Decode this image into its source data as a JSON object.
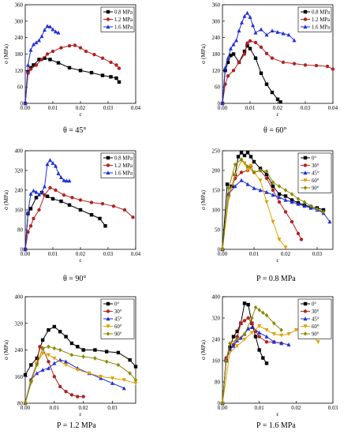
{
  "chart_data": [
    {
      "type": "line",
      "caption": "θ = 45°",
      "xlabel": "ε",
      "ylabel": "σ (MPa)",
      "xlim": [
        0,
        0.04
      ],
      "ylim": [
        0,
        360
      ],
      "xticks": [
        "0.00",
        "0.01",
        "0.02",
        "0.03",
        "0.04"
      ],
      "yticks": [
        "0",
        "60",
        "120",
        "180",
        "240",
        "300",
        "360"
      ],
      "legend_position": "top-right",
      "grid": false,
      "series": [
        {
          "name": "0.8 MPa",
          "color": "#000000",
          "marker": "square",
          "x": [
            0,
            0.001,
            0.002,
            0.003,
            0.005,
            0.007,
            0.009,
            0.012,
            0.016,
            0.02,
            0.024,
            0.028,
            0.031,
            0.033,
            0.034
          ],
          "y": [
            0,
            115,
            130,
            140,
            160,
            165,
            160,
            148,
            130,
            120,
            112,
            102,
            97,
            92,
            78
          ]
        },
        {
          "name": "1.2 MPa",
          "color": "#b22222",
          "marker": "circle",
          "x": [
            0,
            0.001,
            0.002,
            0.004,
            0.006,
            0.008,
            0.01,
            0.013,
            0.016,
            0.018,
            0.02,
            0.022,
            0.025,
            0.028,
            0.031,
            0.033,
            0.034
          ],
          "y": [
            0,
            110,
            125,
            140,
            160,
            180,
            190,
            203,
            210,
            212,
            203,
            190,
            178,
            165,
            150,
            140,
            128
          ]
        },
        {
          "name": "1.6 MPa",
          "color": "#1f2fd6",
          "marker": "triangle",
          "x": [
            0,
            0.001,
            0.002,
            0.003,
            0.004,
            0.005,
            0.006,
            0.007,
            0.008,
            0.009,
            0.01,
            0.011,
            0.012
          ],
          "y": [
            0,
            140,
            195,
            215,
            222,
            230,
            245,
            268,
            282,
            280,
            270,
            262,
            258
          ]
        }
      ]
    },
    {
      "type": "line",
      "caption": "θ = 60°",
      "xlabel": "ε",
      "ylabel": "σ (MPa)",
      "xlim": [
        0,
        0.04
      ],
      "ylim": [
        0,
        360
      ],
      "xticks": [
        "0.00",
        "0.01",
        "0.02",
        "0.03",
        "0.04"
      ],
      "yticks": [
        "0",
        "60",
        "120",
        "180",
        "240",
        "300",
        "360"
      ],
      "legend_position": "top-right",
      "grid": false,
      "series": [
        {
          "name": "0.8 MPa",
          "color": "#000000",
          "marker": "square",
          "x": [
            0,
            0.001,
            0.002,
            0.003,
            0.004,
            0.006,
            0.008,
            0.009,
            0.01,
            0.012,
            0.014,
            0.016,
            0.018,
            0.02,
            0.021
          ],
          "y": [
            0,
            120,
            150,
            175,
            180,
            150,
            190,
            210,
            200,
            165,
            110,
            70,
            40,
            15,
            5
          ]
        },
        {
          "name": "1.2 MPa",
          "color": "#b22222",
          "marker": "circle",
          "x": [
            0,
            0.001,
            0.002,
            0.004,
            0.006,
            0.008,
            0.009,
            0.01,
            0.012,
            0.014,
            0.016,
            0.018,
            0.022,
            0.026,
            0.03,
            0.034,
            0.038,
            0.04
          ],
          "y": [
            0,
            70,
            100,
            120,
            150,
            180,
            220,
            228,
            222,
            205,
            182,
            165,
            150,
            145,
            140,
            138,
            135,
            125
          ]
        },
        {
          "name": "1.6 MPa",
          "color": "#1f2fd6",
          "marker": "triangle",
          "x": [
            0,
            0.001,
            0.002,
            0.003,
            0.004,
            0.005,
            0.006,
            0.007,
            0.008,
            0.009,
            0.01,
            0.011,
            0.012,
            0.014,
            0.016,
            0.018,
            0.02,
            0.022,
            0.024,
            0.026
          ],
          "y": [
            0,
            130,
            165,
            200,
            215,
            230,
            265,
            295,
            318,
            330,
            315,
            285,
            258,
            270,
            250,
            265,
            260,
            255,
            250,
            230
          ]
        }
      ]
    },
    {
      "type": "line",
      "caption": "θ = 90°",
      "xlabel": "ε",
      "ylabel": "σ (MPa)",
      "xlim": [
        0,
        0.04
      ],
      "ylim": [
        0,
        400
      ],
      "xticks": [
        "0.00",
        "0.01",
        "0.02",
        "0.03",
        "0.04"
      ],
      "yticks": [
        "0",
        "80",
        "160",
        "240",
        "320",
        "400"
      ],
      "legend_position": "top-right",
      "grid": false,
      "series": [
        {
          "name": "0.8 MPa",
          "color": "#000000",
          "marker": "square",
          "x": [
            0,
            0.001,
            0.002,
            0.004,
            0.006,
            0.008,
            0.01,
            0.013,
            0.016,
            0.02,
            0.024,
            0.027,
            0.029
          ],
          "y": [
            0,
            145,
            165,
            210,
            230,
            215,
            205,
            195,
            180,
            160,
            140,
            125,
            95
          ]
        },
        {
          "name": "1.2 MPa",
          "color": "#b22222",
          "marker": "circle",
          "x": [
            0,
            0.001,
            0.002,
            0.003,
            0.005,
            0.007,
            0.009,
            0.011,
            0.014,
            0.017,
            0.02,
            0.024,
            0.028,
            0.032,
            0.036,
            0.039
          ],
          "y": [
            0,
            70,
            95,
            125,
            160,
            220,
            250,
            240,
            220,
            210,
            200,
            190,
            185,
            175,
            160,
            130
          ]
        },
        {
          "name": "1.6 MPa",
          "color": "#1f2fd6",
          "marker": "triangle",
          "x": [
            0,
            0.001,
            0.002,
            0.003,
            0.004,
            0.005,
            0.006,
            0.007,
            0.008,
            0.009,
            0.01,
            0.011,
            0.012,
            0.013,
            0.014,
            0.015,
            0.016
          ],
          "y": [
            0,
            150,
            225,
            238,
            232,
            222,
            232,
            255,
            345,
            362,
            350,
            338,
            308,
            292,
            280,
            278,
            278
          ]
        }
      ]
    },
    {
      "type": "line",
      "caption": "P = 0.8 MPa",
      "xlabel": "ε",
      "ylabel": "σ (MPa)",
      "xlim": [
        0,
        0.035
      ],
      "ylim": [
        0,
        250
      ],
      "xticks": [
        "0.00",
        "0.01",
        "0.02",
        "0.03"
      ],
      "yticks": [
        "0",
        "50",
        "100",
        "150",
        "200",
        "250"
      ],
      "legend_position": "top-right",
      "grid": false,
      "series": [
        {
          "name": "0°",
          "color": "#000000",
          "marker": "square",
          "x": [
            0,
            0.0015,
            0.003,
            0.004,
            0.005,
            0.006,
            0.007,
            0.008,
            0.009,
            0.01,
            0.012,
            0.014,
            0.016,
            0.018,
            0.02,
            0.022,
            0.024,
            0.026,
            0.028,
            0.03,
            0.032
          ],
          "y": [
            0,
            165,
            160,
            190,
            235,
            245,
            238,
            245,
            235,
            222,
            205,
            190,
            160,
            140,
            135,
            125,
            118,
            112,
            108,
            105,
            100
          ]
        },
        {
          "name": "30°",
          "color": "#b22222",
          "marker": "circle",
          "x": [
            0,
            0.002,
            0.004,
            0.006,
            0.008,
            0.009,
            0.01,
            0.012,
            0.014,
            0.016,
            0.018,
            0.02,
            0.022,
            0.024,
            0.025
          ],
          "y": [
            0,
            140,
            180,
            195,
            200,
            210,
            195,
            200,
            180,
            150,
            120,
            95,
            70,
            40,
            25
          ]
        },
        {
          "name": "45°",
          "color": "#1f2fd6",
          "marker": "triangle",
          "x": [
            0,
            0.002,
            0.004,
            0.006,
            0.008,
            0.01,
            0.012,
            0.014,
            0.016,
            0.018,
            0.02,
            0.022,
            0.024,
            0.026,
            0.028,
            0.03,
            0.032,
            0.034
          ],
          "y": [
            0,
            140,
            160,
            175,
            165,
            155,
            150,
            145,
            138,
            132,
            125,
            120,
            115,
            110,
            105,
            100,
            92,
            70
          ]
        },
        {
          "name": "60°",
          "color": "#e0a000",
          "marker": "inverted-triangle",
          "x": [
            0,
            0.002,
            0.004,
            0.006,
            0.007,
            0.008,
            0.009,
            0.01,
            0.012,
            0.014,
            0.016,
            0.018,
            0.02
          ],
          "y": [
            0,
            130,
            190,
            225,
            218,
            200,
            212,
            195,
            175,
            120,
            70,
            25,
            5
          ]
        },
        {
          "name": "90°",
          "color": "#8a8a00",
          "marker": "diamond",
          "x": [
            0,
            0.002,
            0.004,
            0.006,
            0.008,
            0.01,
            0.012,
            0.014,
            0.016,
            0.018,
            0.02,
            0.022,
            0.024,
            0.026,
            0.028,
            0.03,
            0.032
          ],
          "y": [
            0,
            155,
            215,
            228,
            210,
            195,
            200,
            198,
            170,
            160,
            150,
            140,
            128,
            120,
            110,
            102,
            95
          ]
        }
      ]
    },
    {
      "type": "line",
      "caption": "P = 1.2 MPa",
      "xlabel": "ε",
      "ylabel": "σ (MPa)",
      "xlim": [
        0,
        0.038
      ],
      "ylim": [
        80,
        400
      ],
      "xticks": [
        "0.00",
        "0.01",
        "0.02",
        "0.03"
      ],
      "yticks": [
        "80",
        "160",
        "240",
        "320",
        "400"
      ],
      "legend_position": "top-right",
      "grid": false,
      "series": [
        {
          "name": "0°",
          "color": "#000000",
          "marker": "square",
          "x": [
            0,
            0.002,
            0.004,
            0.006,
            0.008,
            0.01,
            0.012,
            0.014,
            0.016,
            0.018,
            0.02,
            0.024,
            0.028,
            0.032,
            0.036,
            0.038
          ],
          "y": [
            165,
            195,
            215,
            270,
            300,
            310,
            295,
            280,
            260,
            250,
            240,
            240,
            235,
            232,
            210,
            190
          ]
        },
        {
          "name": "30°",
          "color": "#b22222",
          "marker": "circle",
          "x": [
            0,
            0.002,
            0.004,
            0.005,
            0.006,
            0.008,
            0.01,
            0.012,
            0.014,
            0.016,
            0.018,
            0.02
          ],
          "y": [
            80,
            150,
            200,
            250,
            245,
            205,
            160,
            130,
            115,
            105,
            100,
            100
          ]
        },
        {
          "name": "45°",
          "color": "#1f2fd6",
          "marker": "triangle",
          "x": [
            0,
            0.002,
            0.004,
            0.006,
            0.008,
            0.01,
            0.012,
            0.014,
            0.018,
            0.022,
            0.026,
            0.03,
            0.034
          ],
          "y": [
            80,
            150,
            170,
            180,
            185,
            200,
            210,
            205,
            185,
            170,
            155,
            140,
            125
          ]
        },
        {
          "name": "60°",
          "color": "#e0a000",
          "marker": "inverted-triangle",
          "x": [
            0,
            0.002,
            0.004,
            0.006,
            0.008,
            0.01,
            0.014,
            0.018,
            0.022,
            0.026,
            0.03,
            0.034,
            0.038
          ],
          "y": [
            80,
            140,
            200,
            230,
            225,
            215,
            195,
            180,
            170,
            160,
            155,
            150,
            140
          ]
        },
        {
          "name": "90°",
          "color": "#8a8a00",
          "marker": "diamond",
          "x": [
            0,
            0.002,
            0.004,
            0.006,
            0.008,
            0.01,
            0.012,
            0.016,
            0.02,
            0.024,
            0.028,
            0.032,
            0.036,
            0.038
          ],
          "y": [
            80,
            145,
            195,
            245,
            250,
            245,
            240,
            225,
            220,
            215,
            205,
            195,
            170,
            150
          ]
        }
      ]
    },
    {
      "type": "line",
      "caption": "P = 1.6 MPa",
      "xlabel": "ε",
      "ylabel": "σ (MPa)",
      "xlim": [
        0,
        0.03
      ],
      "ylim": [
        0,
        400
      ],
      "xticks": [
        "0.00",
        "0.01",
        "0.02",
        "0.03"
      ],
      "yticks": [
        "0",
        "80",
        "160",
        "240",
        "320",
        "400"
      ],
      "legend_position": "top-right",
      "grid": false,
      "series": [
        {
          "name": "0°",
          "color": "#000000",
          "marker": "square",
          "x": [
            0,
            0.001,
            0.002,
            0.003,
            0.004,
            0.005,
            0.006,
            0.007,
            0.008,
            0.009,
            0.01,
            0.011,
            0.012
          ],
          "y": [
            0,
            160,
            210,
            250,
            270,
            300,
            375,
            370,
            300,
            250,
            200,
            170,
            150
          ]
        },
        {
          "name": "30°",
          "color": "#b22222",
          "marker": "circle",
          "x": [
            0,
            0.001,
            0.002,
            0.003,
            0.004,
            0.005,
            0.006,
            0.007,
            0.008,
            0.009,
            0.01,
            0.012,
            0.014,
            0.016
          ],
          "y": [
            0,
            170,
            200,
            220,
            250,
            300,
            310,
            320,
            300,
            270,
            250,
            230,
            230,
            225
          ]
        },
        {
          "name": "45°",
          "color": "#1f2fd6",
          "marker": "triangle",
          "x": [
            0,
            0.001,
            0.002,
            0.003,
            0.004,
            0.005,
            0.006,
            0.007,
            0.008,
            0.01,
            0.012,
            0.014,
            0.016,
            0.018
          ],
          "y": [
            0,
            160,
            200,
            215,
            235,
            245,
            260,
            280,
            285,
            265,
            250,
            230,
            225,
            220
          ]
        },
        {
          "name": "60°",
          "color": "#e0a000",
          "marker": "inverted-triangle",
          "x": [
            0,
            0.002,
            0.004,
            0.006,
            0.008,
            0.01,
            0.012,
            0.014,
            0.016,
            0.018,
            0.02,
            0.022,
            0.024,
            0.026
          ],
          "y": [
            0,
            190,
            215,
            240,
            265,
            290,
            275,
            260,
            255,
            260,
            275,
            268,
            258,
            230
          ]
        },
        {
          "name": "90°",
          "color": "#8a8a00",
          "marker": "diamond",
          "x": [
            0,
            0.001,
            0.002,
            0.004,
            0.006,
            0.008,
            0.009,
            0.01,
            0.011,
            0.012,
            0.014,
            0.016
          ],
          "y": [
            0,
            160,
            225,
            240,
            260,
            320,
            360,
            350,
            340,
            330,
            300,
            275
          ]
        }
      ]
    }
  ]
}
